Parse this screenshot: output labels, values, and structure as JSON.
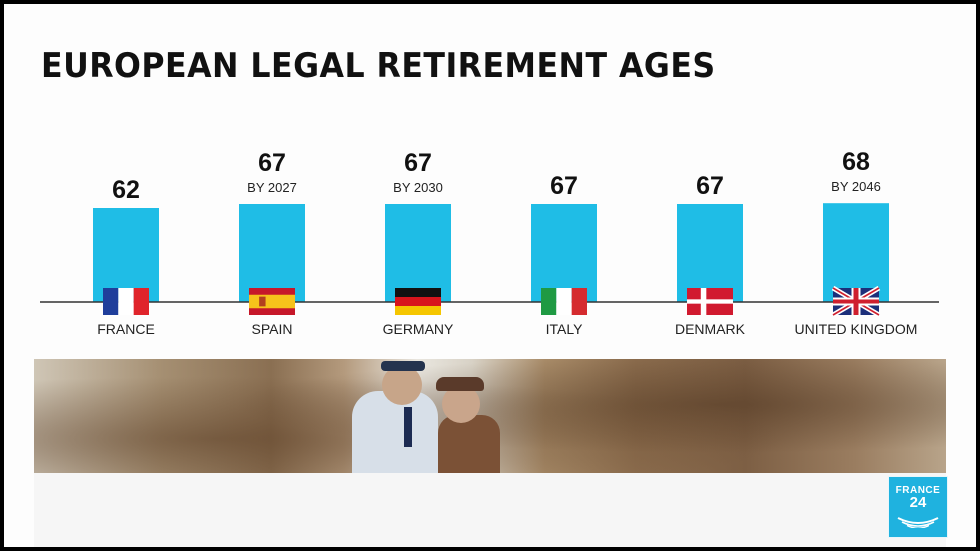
{
  "chart_data": {
    "type": "bar",
    "title": "EUROPEAN LEGAL RETIREMENT AGES",
    "categories": [
      "FRANCE",
      "SPAIN",
      "GERMANY",
      "ITALY",
      "DENMARK",
      "UNITED KINGDOM"
    ],
    "values": [
      62,
      67,
      67,
      67,
      67,
      68
    ],
    "value_labels": [
      "62",
      "67",
      "67",
      "67",
      "67",
      "68"
    ],
    "notes": [
      "",
      "BY 2027",
      "BY 2030",
      "",
      "",
      "BY 2046"
    ],
    "flags": [
      "france-flag",
      "spain-flag",
      "germany-flag",
      "italy-flag",
      "denmark-flag",
      "uk-flag"
    ],
    "bar_color": "#1fbde6",
    "xlabel": "",
    "ylabel": "",
    "grid": false
  },
  "branding": {
    "logo_line1": "FRANCE",
    "logo_line2": "24",
    "logo_color": "#1fb2df"
  },
  "photo": {
    "subject": "elderly-men-photo"
  }
}
